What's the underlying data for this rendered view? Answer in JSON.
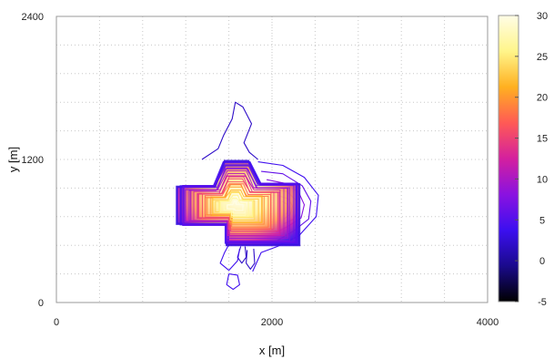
{
  "chart_data": {
    "type": "contour",
    "xlabel": "x [m]",
    "ylabel": "y [m]",
    "xlim": [
      0,
      4000
    ],
    "ylim": [
      0,
      2400
    ],
    "x_ticks": [
      "0",
      "2000",
      "4000"
    ],
    "y_ticks": [
      "0",
      "1200",
      "2400"
    ],
    "grid": true,
    "colorbar": {
      "range": [
        -5,
        30
      ],
      "ticks": [
        "-5",
        "0",
        "5",
        "10",
        "15",
        "20",
        "25",
        "30"
      ],
      "colormap": [
        "#000000",
        "#1a0a8c",
        "#3c0ff0",
        "#8a12e0",
        "#d4209e",
        "#ff5a55",
        "#ffb020",
        "#fff58a",
        "#fffde6"
      ]
    },
    "dense_region": {
      "outline": [
        [
          1130,
          980
        ],
        [
          1130,
          650
        ],
        [
          1580,
          650
        ],
        [
          1580,
          480
        ],
        [
          2260,
          480
        ],
        [
          2260,
          1000
        ],
        [
          1890,
          1000
        ],
        [
          1790,
          1180
        ],
        [
          1560,
          1180
        ],
        [
          1460,
          980
        ]
      ],
      "hotspot_center": [
        1650,
        800
      ],
      "peak_value": 30
    },
    "sparse_contours": [
      {
        "level": 2,
        "polyline": [
          [
            1350,
            1200
          ],
          [
            1500,
            1290
          ],
          [
            1550,
            1400
          ],
          [
            1630,
            1540
          ],
          [
            1660,
            1680
          ],
          [
            1730,
            1640
          ],
          [
            1810,
            1500
          ],
          [
            1740,
            1340
          ],
          [
            1790,
            1260
          ],
          [
            1870,
            1200
          ]
        ]
      },
      {
        "level": 4,
        "polyline": [
          [
            1870,
            1180
          ],
          [
            2100,
            1150
          ],
          [
            2300,
            1050
          ],
          [
            2430,
            900
          ],
          [
            2410,
            720
          ],
          [
            2250,
            560
          ],
          [
            2050,
            470
          ],
          [
            1900,
            420
          ],
          [
            1820,
            260
          ]
        ]
      },
      {
        "level": 6,
        "polyline": [
          [
            1900,
            1100
          ],
          [
            2100,
            1080
          ],
          [
            2280,
            980
          ],
          [
            2360,
            850
          ],
          [
            2340,
            700
          ],
          [
            2200,
            600
          ],
          [
            2050,
            520
          ]
        ]
      },
      {
        "level": 8,
        "polyline": [
          [
            1950,
            1030
          ],
          [
            2120,
            1000
          ],
          [
            2250,
            920
          ],
          [
            2300,
            820
          ],
          [
            2270,
            710
          ],
          [
            2150,
            640
          ],
          [
            2040,
            590
          ]
        ]
      },
      {
        "level": 10,
        "polyline": [
          [
            2000,
            960
          ],
          [
            2140,
            930
          ],
          [
            2220,
            860
          ],
          [
            2240,
            780
          ],
          [
            2200,
            700
          ],
          [
            2110,
            660
          ]
        ]
      },
      {
        "level": 12,
        "polyline": [
          [
            2050,
            900
          ],
          [
            2150,
            870
          ],
          [
            2190,
            810
          ],
          [
            2170,
            740
          ],
          [
            2110,
            700
          ]
        ]
      },
      {
        "level": 14,
        "polyline": [
          [
            2090,
            850
          ],
          [
            2150,
            820
          ],
          [
            2160,
            780
          ],
          [
            2130,
            740
          ]
        ]
      },
      {
        "level": 2,
        "polyline": [
          [
            1770,
            440
          ],
          [
            1760,
            330
          ],
          [
            1800,
            280
          ],
          [
            1840,
            330
          ],
          [
            1830,
            450
          ]
        ]
      },
      {
        "level": 2,
        "polyline": [
          [
            1710,
            470
          ],
          [
            1680,
            380
          ],
          [
            1720,
            330
          ],
          [
            1760,
            380
          ],
          [
            1750,
            470
          ]
        ]
      },
      {
        "level": 4,
        "polyline": [
          [
            1620,
            520
          ],
          [
            1560,
            420
          ],
          [
            1520,
            330
          ],
          [
            1600,
            270
          ],
          [
            1680,
            350
          ],
          [
            1700,
            450
          ]
        ]
      },
      {
        "level": 4,
        "polyline": [
          [
            1600,
            240
          ],
          [
            1580,
            150
          ],
          [
            1640,
            110
          ],
          [
            1700,
            150
          ],
          [
            1680,
            230
          ],
          [
            1600,
            240
          ]
        ]
      }
    ]
  }
}
